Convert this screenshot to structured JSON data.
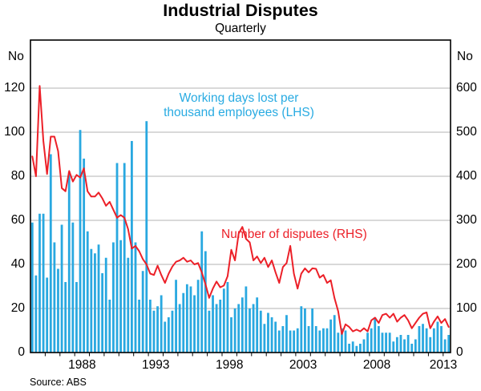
{
  "title": "Industrial Disputes",
  "subtitle": "Quarterly",
  "source": "Source: ABS",
  "axes": {
    "left_unit": "No",
    "right_unit": "No",
    "left_ticks": [
      0,
      20,
      40,
      60,
      80,
      100,
      120
    ],
    "right_ticks": [
      0,
      100,
      200,
      300,
      400,
      500,
      600
    ],
    "year_labels": [
      "1988",
      "1993",
      "1998",
      "2003",
      "2008",
      "2013"
    ]
  },
  "annotations": {
    "bars_label_line1": "Working days lost per",
    "bars_label_line2": "thousand employees (LHS)",
    "line_label": "Number of disputes (RHS)"
  },
  "colors": {
    "bars": "#29a8e0",
    "line": "#ec2028",
    "grid": "#b3b3b3",
    "axis": "#000000",
    "blue_text": "#29abe2",
    "red_text": "#ec2028"
  },
  "chart_data": {
    "type": "bar",
    "note": "blue bars = LHS, red line = RHS; quarterly 1985Q1-2013Q2",
    "frequency": "quarterly",
    "start": "1985Q1",
    "end": "2013Q2",
    "x_domain": [
      1985.0,
      2013.5
    ],
    "lhs_range": [
      0,
      141.8
    ],
    "rhs_range": [
      0,
      709
    ],
    "rhs_per_lhs": 5,
    "series": [
      {
        "name": "Working days lost per thousand employees",
        "axis": "LHS",
        "style": "bar",
        "values": [
          59,
          35,
          63,
          63,
          34,
          90,
          50,
          38,
          58,
          32,
          82,
          59,
          32,
          101,
          88,
          55,
          47,
          45,
          49,
          36,
          43,
          24,
          50,
          86,
          51,
          86,
          43,
          96,
          50,
          24,
          37,
          105,
          24,
          19,
          21,
          26,
          14,
          16,
          19,
          33,
          22,
          27,
          31,
          30,
          26,
          33,
          55,
          46,
          19,
          26,
          22,
          24,
          29,
          32,
          16,
          20,
          22,
          25,
          30,
          20,
          22,
          25,
          19,
          13,
          18,
          16,
          14,
          10,
          12,
          17,
          10,
          10,
          11,
          21,
          20,
          12,
          20,
          12,
          10,
          11,
          11,
          15,
          17,
          9,
          11,
          10,
          4,
          5,
          3,
          4,
          6,
          9,
          11,
          16,
          12,
          9,
          9,
          9,
          5,
          7,
          8,
          6,
          8,
          4,
          6,
          12,
          13,
          11,
          7,
          11,
          14,
          12,
          6,
          8
        ]
      },
      {
        "name": "Number of disputes",
        "axis": "RHS",
        "style": "line",
        "values": [
          445,
          400,
          605,
          480,
          405,
          490,
          490,
          457,
          373,
          366,
          412,
          388,
          403,
          397,
          418,
          366,
          354,
          354,
          363,
          350,
          333,
          342,
          324,
          306,
          312,
          306,
          280,
          236,
          242,
          230,
          212,
          200,
          179,
          176,
          197,
          176,
          158,
          179,
          195,
          206,
          209,
          215,
          206,
          209,
          200,
          203,
          182,
          155,
          124,
          145,
          161,
          148,
          152,
          173,
          233,
          209,
          270,
          285,
          258,
          250,
          209,
          218,
          203,
          215,
          194,
          209,
          182,
          158,
          194,
          203,
          242,
          179,
          145,
          179,
          191,
          182,
          191,
          190,
          170,
          176,
          158,
          164,
          124,
          94,
          42,
          64,
          58,
          48,
          52,
          48,
          55,
          48,
          73,
          79,
          67,
          85,
          88,
          79,
          88,
          70,
          79,
          85,
          73,
          55,
          67,
          79,
          88,
          91,
          55,
          70,
          82,
          67,
          76,
          58
        ]
      }
    ]
  }
}
